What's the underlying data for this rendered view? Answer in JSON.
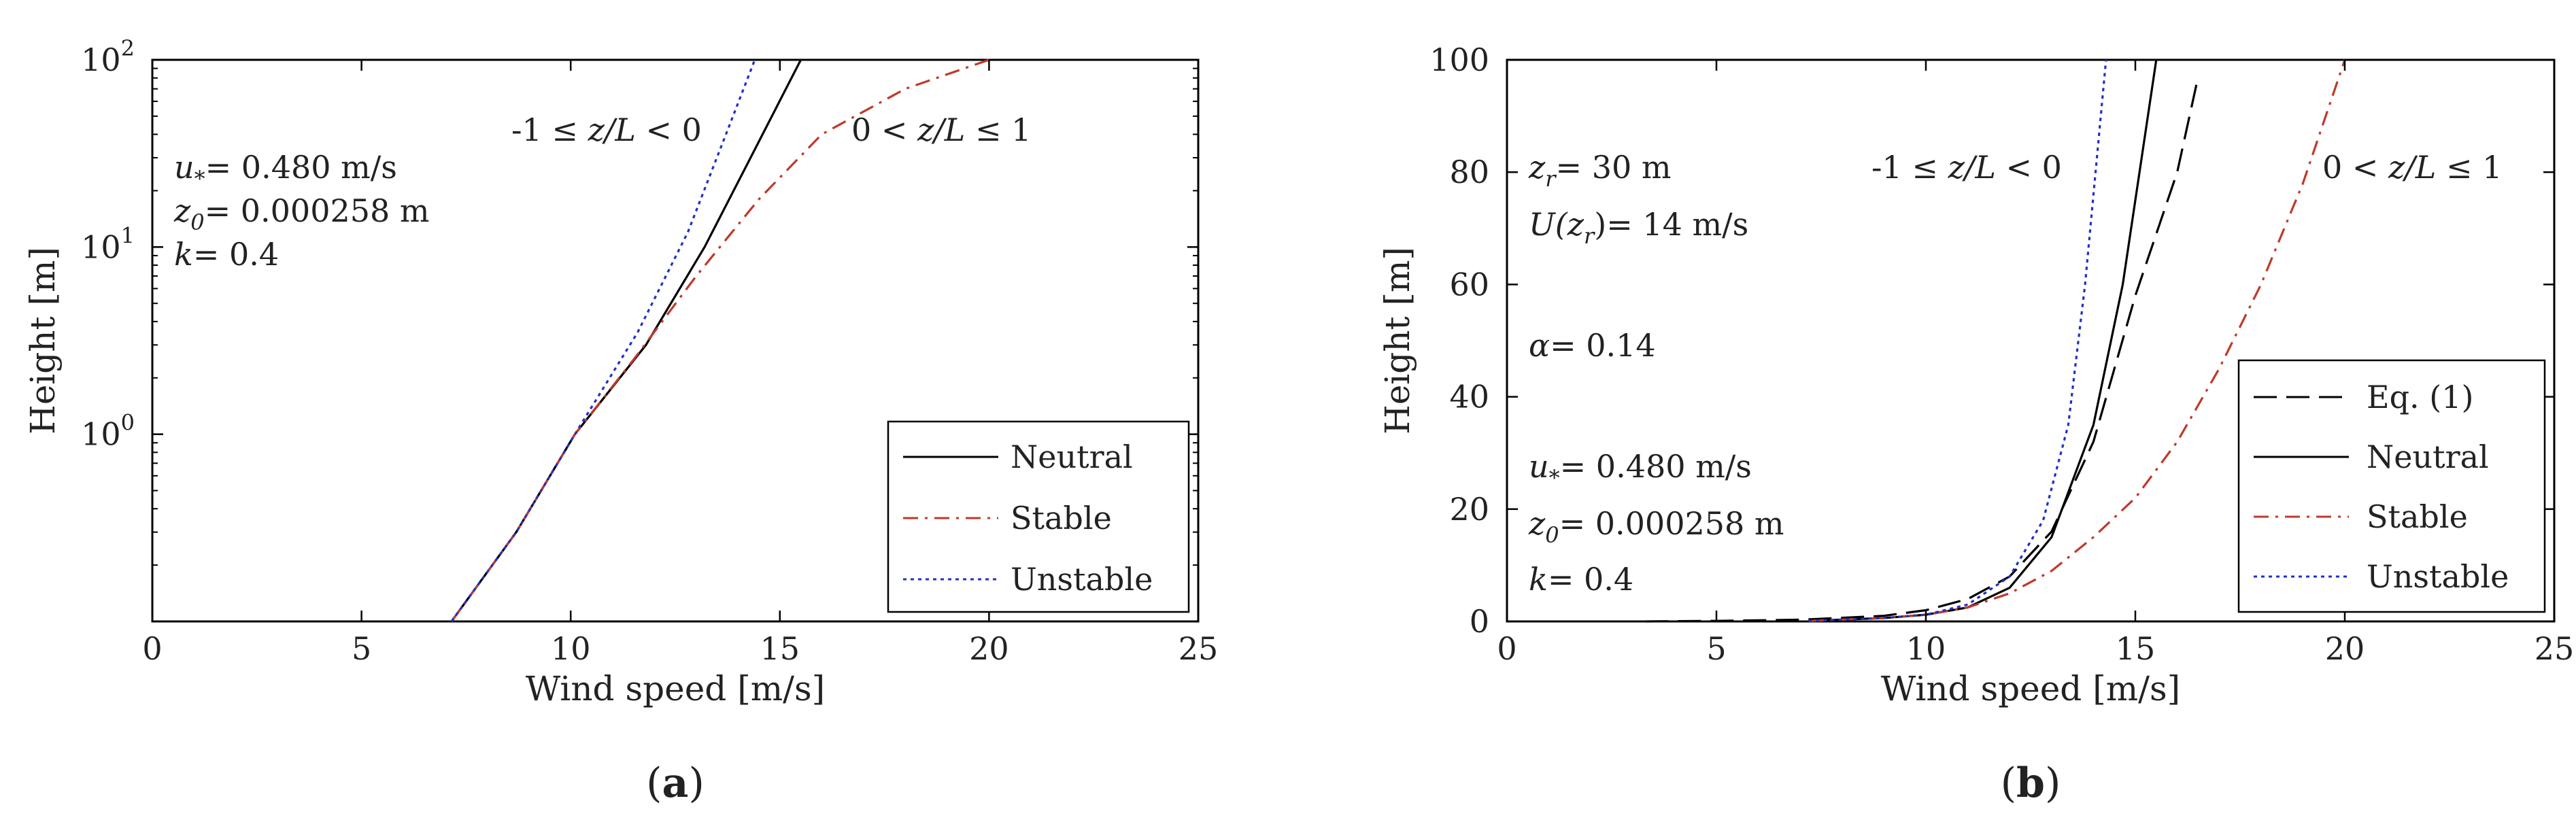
{
  "chart_data": [
    {
      "panel": "a",
      "caption": "(a)",
      "type": "line",
      "xlabel": "Wind speed [m/s]",
      "ylabel": "Height [m]",
      "xlim": [
        0,
        25
      ],
      "ylim": [
        0.1,
        100
      ],
      "yscale": "log",
      "xticks": [
        "0",
        "5",
        "10",
        "15",
        "20",
        "25"
      ],
      "yticks": [
        {
          "value": 1,
          "base": "10",
          "exp": "0"
        },
        {
          "value": 10,
          "base": "10",
          "exp": "1"
        },
        {
          "value": 100,
          "base": "10",
          "exp": "2"
        }
      ],
      "grid": false,
      "legend_position": "bottom-right",
      "annotations": [
        {
          "sym": "u",
          "sub": "*",
          "text": "= 0.480 m/s"
        },
        {
          "sym": "z",
          "sub": "0",
          "text": "= 0.000258 m"
        },
        {
          "sym": "k",
          "sub": "",
          "text": "= 0.4"
        }
      ],
      "regions": [
        {
          "pre": "-1 ≤ ",
          "zl": "z/L",
          "post": " < 0"
        },
        {
          "pre": "0 < ",
          "zl": "z/L",
          "post": " ≤ 1"
        }
      ],
      "series": [
        {
          "name": "Neutral",
          "style": "solid",
          "color": "#000000",
          "points": [
            [
              7.15,
              0.1
            ],
            [
              8.7,
              0.3
            ],
            [
              10.1,
              1
            ],
            [
              11.8,
              3
            ],
            [
              13.2,
              10
            ],
            [
              14.3,
              30
            ],
            [
              15.5,
              100
            ]
          ]
        },
        {
          "name": "Stable",
          "style": "dashdot",
          "color": "#c0392b",
          "points": [
            [
              7.15,
              0.1
            ],
            [
              8.7,
              0.3
            ],
            [
              10.1,
              1
            ],
            [
              11.5,
              2.5
            ],
            [
              13,
              7
            ],
            [
              14.5,
              18
            ],
            [
              16,
              40
            ],
            [
              18,
              70
            ],
            [
              20,
              100
            ]
          ]
        },
        {
          "name": "Unstable",
          "style": "dotted",
          "color": "#2030c8",
          "points": [
            [
              7.15,
              0.1
            ],
            [
              8.7,
              0.3
            ],
            [
              10.1,
              1
            ],
            [
              11.6,
              3.5
            ],
            [
              12.8,
              12
            ],
            [
              13.8,
              45
            ],
            [
              14.4,
              100
            ]
          ]
        }
      ]
    },
    {
      "panel": "b",
      "caption": "(b)",
      "type": "line",
      "xlabel": "Wind speed [m/s]",
      "ylabel": "Height [m]",
      "xlim": [
        0,
        25
      ],
      "ylim": [
        0,
        100
      ],
      "yscale": "linear",
      "xticks": [
        "0",
        "5",
        "10",
        "15",
        "20",
        "25"
      ],
      "yticks": [
        "0",
        "20",
        "40",
        "60",
        "80",
        "100"
      ],
      "grid": false,
      "legend_position": "bottom-right",
      "annotations_top": [
        {
          "sym": "z",
          "sub": "r",
          "text": "= 30 m"
        },
        {
          "sym": "U(z",
          "sub": "r",
          "text": ")= 14 m/s"
        },
        {
          "sym": "α",
          "sub": "",
          "text": "= 0.14"
        }
      ],
      "annotations_bottom": [
        {
          "sym": "u",
          "sub": "*",
          "text": "= 0.480 m/s"
        },
        {
          "sym": "z",
          "sub": "0",
          "text": "= 0.000258 m"
        },
        {
          "sym": "k",
          "sub": "",
          "text": "= 0.4"
        }
      ],
      "regions": [
        {
          "pre": "-1 ≤ ",
          "zl": "z/L",
          "post": " < 0"
        },
        {
          "pre": "0 < ",
          "zl": "z/L",
          "post": " ≤ 1"
        }
      ],
      "series": [
        {
          "name": "Eq. (1)",
          "style": "dashed",
          "color": "#000000",
          "points": [
            [
              3.3,
              0.0
            ],
            [
              5,
              0.1
            ],
            [
              7,
              0.3
            ],
            [
              9,
              1
            ],
            [
              10,
              2
            ],
            [
              11,
              4
            ],
            [
              12,
              8
            ],
            [
              13,
              16
            ],
            [
              14,
              32
            ],
            [
              15,
              58
            ],
            [
              16,
              80
            ],
            [
              16.5,
              97
            ]
          ]
        },
        {
          "name": "Neutral",
          "style": "solid",
          "color": "#000000",
          "points": [
            [
              7.2,
              0.1
            ],
            [
              9,
              0.6
            ],
            [
              10,
              1.2
            ],
            [
              11,
              2.5
            ],
            [
              12,
              6
            ],
            [
              13,
              15
            ],
            [
              14,
              35
            ],
            [
              14.7,
              60
            ],
            [
              15.5,
              100
            ]
          ]
        },
        {
          "name": "Stable",
          "style": "dashdot",
          "color": "#c0392b",
          "points": [
            [
              7.2,
              0.1
            ],
            [
              9,
              0.6
            ],
            [
              10,
              1.2
            ],
            [
              11,
              2.5
            ],
            [
              12,
              5
            ],
            [
              13,
              9
            ],
            [
              14,
              15
            ],
            [
              15,
              22
            ],
            [
              16,
              32
            ],
            [
              17,
              45
            ],
            [
              18,
              60
            ],
            [
              19,
              78
            ],
            [
              20,
              100
            ]
          ]
        },
        {
          "name": "Unstable",
          "style": "dotted",
          "color": "#2030c8",
          "points": [
            [
              7.2,
              0.1
            ],
            [
              9,
              0.6
            ],
            [
              10,
              1.2
            ],
            [
              11,
              3
            ],
            [
              12,
              8
            ],
            [
              12.8,
              18
            ],
            [
              13.4,
              35
            ],
            [
              13.8,
              60
            ],
            [
              14.3,
              100
            ]
          ]
        }
      ]
    }
  ]
}
